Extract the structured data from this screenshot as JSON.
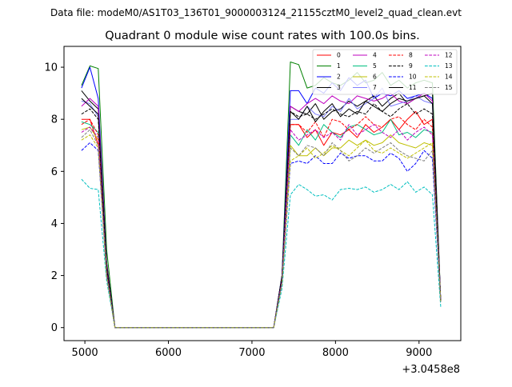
{
  "figure": {
    "suptitle": "Data file: modeM0/AS1T03_136T01_9000003124_21155cztM0_level2_quad_clean.evt",
    "title": "Quadrant 0 module wise count rates with 100.0s bins.",
    "offset_label": "+3.0458e8"
  },
  "chart_data": {
    "type": "line",
    "title": "Quadrant 0 module wise count rates with 100.0s bins.",
    "xlabel": "",
    "ylabel": "",
    "x_offset": 304580000,
    "xlim": [
      4750,
      9500
    ],
    "ylim": [
      -0.5,
      10.8
    ],
    "xticks": [
      5000,
      6000,
      7000,
      8000,
      9000
    ],
    "xtick_labels": [
      "5000",
      "6000",
      "7000",
      "8000",
      "9000"
    ],
    "yticks": [
      0,
      2,
      4,
      6,
      8,
      10
    ],
    "ytick_labels": [
      "0",
      "2",
      "4",
      "6",
      "8",
      "10"
    ],
    "grid": false,
    "legend_position": "top-right",
    "legend_columns": 4,
    "x_seg1": [
      4960,
      5060,
      5160,
      5260,
      5360
    ],
    "x_seg2": [
      7260,
      7360,
      7460,
      7560,
      7660,
      7760,
      7860,
      7960,
      8060,
      8160,
      8260,
      8360,
      8460,
      8560,
      8660,
      8760,
      8860,
      8960,
      9060,
      9160,
      9260
    ],
    "series": [
      {
        "name": "0",
        "color": "#ff0000",
        "dash": false,
        "seg1": [
          8.0,
          8.0,
          7.0,
          2.0,
          0.0
        ],
        "seg2": [
          0.0,
          1.8,
          7.8,
          7.8,
          7.3,
          7.6,
          7.0,
          7.5,
          7.4,
          7.6,
          7.3,
          7.8,
          7.5,
          7.7,
          8.0,
          7.6,
          8.0,
          8.3,
          7.8,
          8.0,
          1.0
        ]
      },
      {
        "name": "1",
        "color": "#008000",
        "dash": false,
        "seg1": [
          9.3,
          10.05,
          9.95,
          3.0,
          0.0
        ],
        "seg2": [
          0.0,
          2.0,
          10.2,
          10.1,
          9.2,
          9.3,
          9.6,
          9.4,
          9.3,
          9.5,
          9.8,
          9.4,
          9.5,
          9.8,
          9.3,
          9.5,
          9.2,
          9.4,
          9.5,
          9.4,
          1.0
        ]
      },
      {
        "name": "2",
        "color": "#0000ff",
        "dash": false,
        "seg1": [
          9.2,
          10.0,
          8.8,
          2.5,
          0.0
        ],
        "seg2": [
          0.0,
          2.0,
          9.1,
          9.1,
          8.6,
          9.2,
          9.0,
          9.4,
          9.1,
          9.6,
          9.3,
          9.5,
          8.8,
          9.0,
          8.9,
          9.1,
          8.8,
          8.9,
          9.0,
          8.8,
          1.0
        ]
      },
      {
        "name": "3",
        "color": "#000000",
        "dash": false,
        "seg1": [
          9.1,
          8.7,
          8.4,
          2.5,
          0.0
        ],
        "seg2": [
          0.0,
          2.0,
          8.5,
          8.3,
          8.2,
          8.6,
          8.0,
          8.3,
          8.4,
          8.7,
          8.5,
          8.7,
          8.9,
          8.5,
          8.8,
          9.0,
          8.6,
          8.8,
          8.9,
          9.0,
          1.0
        ]
      },
      {
        "name": "4",
        "color": "#bf00bf",
        "dash": false,
        "seg1": [
          8.5,
          8.8,
          8.5,
          2.4,
          0.0
        ],
        "seg2": [
          0.0,
          1.9,
          8.5,
          8.3,
          8.6,
          8.8,
          8.6,
          8.9,
          8.7,
          8.6,
          8.9,
          8.8,
          8.7,
          8.8,
          9.0,
          8.7,
          8.6,
          8.8,
          9.0,
          8.7,
          1.0
        ]
      },
      {
        "name": "5",
        "color": "#00bf7f",
        "dash": false,
        "seg1": [
          7.9,
          7.8,
          7.5,
          2.2,
          0.0
        ],
        "seg2": [
          0.0,
          1.8,
          7.4,
          7.0,
          7.6,
          7.2,
          7.8,
          7.5,
          7.3,
          7.7,
          7.8,
          7.6,
          7.4,
          7.5,
          8.0,
          7.4,
          7.5,
          7.3,
          7.6,
          7.5,
          1.0
        ]
      },
      {
        "name": "6",
        "color": "#bfbf00",
        "dash": false,
        "seg1": [
          7.6,
          7.7,
          7.2,
          2.0,
          0.0
        ],
        "seg2": [
          0.0,
          1.8,
          7.0,
          6.6,
          6.6,
          6.9,
          6.6,
          6.9,
          6.9,
          7.2,
          7.0,
          7.2,
          7.0,
          7.1,
          7.4,
          7.1,
          7.0,
          6.9,
          7.1,
          7.0,
          1.0
        ]
      },
      {
        "name": "7",
        "color": "#7f7fff",
        "dash": false,
        "seg1": [
          8.7,
          8.6,
          8.1,
          2.3,
          0.0
        ],
        "seg2": [
          0.0,
          1.9,
          8.0,
          8.0,
          8.5,
          8.2,
          8.1,
          8.5,
          8.3,
          8.8,
          8.4,
          8.6,
          8.8,
          9.2,
          8.5,
          8.6,
          8.7,
          8.9,
          8.7,
          8.6,
          1.0
        ]
      },
      {
        "name": "8",
        "color": "#ff0000",
        "dash": true,
        "seg1": [
          7.8,
          8.0,
          7.4,
          2.1,
          0.0
        ],
        "seg2": [
          0.0,
          1.8,
          7.8,
          7.8,
          7.5,
          7.9,
          7.3,
          8.0,
          7.9,
          7.6,
          7.8,
          8.1,
          7.8,
          7.7,
          8.0,
          8.1,
          7.8,
          7.6,
          8.0,
          7.7,
          1.0
        ]
      },
      {
        "name": "9",
        "color": "#000000",
        "dash": true,
        "seg1": [
          8.2,
          8.4,
          8.0,
          2.3,
          0.0
        ],
        "seg2": [
          0.0,
          1.9,
          8.3,
          8.1,
          8.2,
          8.0,
          8.2,
          8.4,
          8.2,
          8.1,
          8.3,
          8.2,
          8.6,
          8.3,
          8.1,
          8.4,
          8.6,
          8.2,
          8.4,
          8.2,
          1.0
        ]
      },
      {
        "name": "10",
        "color": "#0000ff",
        "dash": true,
        "seg1": [
          6.8,
          7.1,
          6.8,
          2.0,
          0.0
        ],
        "seg2": [
          0.0,
          1.7,
          6.3,
          6.4,
          6.3,
          6.6,
          6.3,
          6.3,
          6.7,
          6.5,
          6.6,
          6.6,
          6.4,
          6.4,
          6.7,
          6.5,
          6.0,
          6.3,
          6.8,
          6.5,
          1.0
        ]
      },
      {
        "name": "11",
        "color": "#000000",
        "dash": false,
        "seg1": [
          8.8,
          8.5,
          8.2,
          2.3,
          0.0
        ],
        "seg2": [
          0.0,
          1.9,
          8.3,
          8.0,
          8.5,
          7.9,
          8.3,
          8.6,
          8.1,
          8.4,
          8.2,
          8.7,
          8.5,
          8.3,
          8.6,
          8.8,
          8.7,
          8.8,
          8.9,
          8.6,
          1.0
        ]
      },
      {
        "name": "12",
        "color": "#bf00bf",
        "dash": true,
        "seg1": [
          7.5,
          7.7,
          7.3,
          2.1,
          0.0
        ],
        "seg2": [
          0.0,
          1.8,
          7.6,
          7.2,
          7.4,
          7.6,
          7.3,
          7.5,
          7.2,
          7.8,
          7.4,
          7.6,
          7.8,
          7.5,
          7.3,
          7.6,
          7.2,
          7.5,
          7.7,
          7.4,
          1.0
        ]
      },
      {
        "name": "13",
        "color": "#00bfbf",
        "dash": true,
        "seg1": [
          5.7,
          5.35,
          5.3,
          1.8,
          0.0
        ],
        "seg2": [
          0.0,
          1.5,
          5.1,
          5.5,
          5.3,
          5.05,
          5.1,
          4.9,
          5.3,
          5.35,
          5.3,
          5.4,
          5.2,
          5.3,
          5.5,
          5.3,
          5.6,
          5.2,
          5.4,
          5.1,
          0.8
        ]
      },
      {
        "name": "14",
        "color": "#bfbf00",
        "dash": true,
        "seg1": [
          7.2,
          7.4,
          6.9,
          2.0,
          0.0
        ],
        "seg2": [
          0.0,
          1.7,
          6.4,
          6.6,
          6.9,
          6.5,
          6.7,
          7.0,
          6.8,
          6.6,
          6.9,
          7.2,
          6.8,
          6.7,
          6.9,
          6.7,
          6.5,
          6.7,
          6.9,
          7.1,
          1.0
        ]
      },
      {
        "name": "15",
        "color": "#7f7f7f",
        "dash": true,
        "seg1": [
          7.3,
          7.6,
          7.0,
          2.0,
          0.0
        ],
        "seg2": [
          0.0,
          1.7,
          6.9,
          6.6,
          7.0,
          6.9,
          6.6,
          7.1,
          6.8,
          6.4,
          6.6,
          6.9,
          6.7,
          6.9,
          7.1,
          6.8,
          6.6,
          6.5,
          6.4,
          6.8,
          1.0
        ]
      }
    ]
  }
}
